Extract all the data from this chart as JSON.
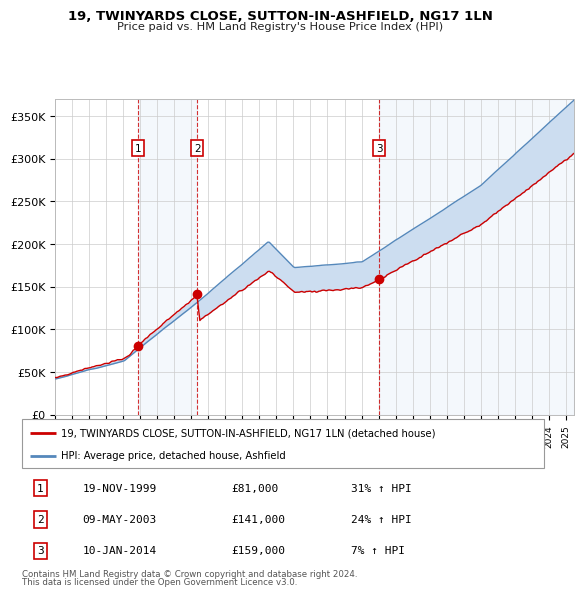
{
  "title": "19, TWINYARDS CLOSE, SUTTON-IN-ASHFIELD, NG17 1LN",
  "subtitle": "Price paid vs. HM Land Registry's House Price Index (HPI)",
  "ylim": [
    0,
    370000
  ],
  "yticks": [
    0,
    50000,
    100000,
    150000,
    200000,
    250000,
    300000,
    350000
  ],
  "ytick_labels": [
    "£0",
    "£50K",
    "£100K",
    "£150K",
    "£200K",
    "£250K",
    "£300K",
    "£350K"
  ],
  "sale1_date": 1999.88,
  "sale1_price": 81000,
  "sale2_date": 2003.35,
  "sale2_price": 141000,
  "sale3_date": 2014.03,
  "sale3_price": 159000,
  "red_line_color": "#cc0000",
  "blue_line_color": "#5588bb",
  "fill_color": "#ccddf0",
  "legend_line1": "19, TWINYARDS CLOSE, SUTTON-IN-ASHFIELD, NG17 1LN (detached house)",
  "legend_line2": "HPI: Average price, detached house, Ashfield",
  "footer1": "Contains HM Land Registry data © Crown copyright and database right 2024.",
  "footer2": "This data is licensed under the Open Government Licence v3.0.",
  "table_rows": [
    [
      "1",
      "19-NOV-1999",
      "£81,000",
      "31% ↑ HPI"
    ],
    [
      "2",
      "09-MAY-2003",
      "£141,000",
      "24% ↑ HPI"
    ],
    [
      "3",
      "10-JAN-2014",
      "£159,000",
      "7% ↑ HPI"
    ]
  ]
}
